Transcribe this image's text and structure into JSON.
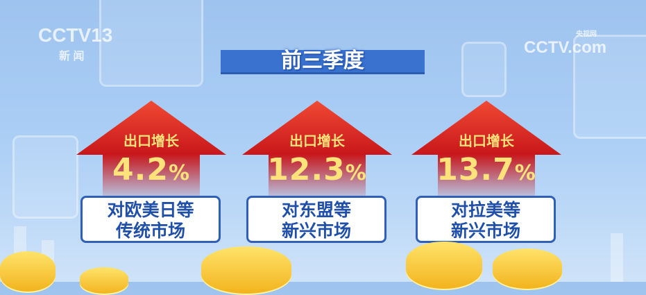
{
  "logos": {
    "channel": "CCTV",
    "channel_number": "13",
    "channel_sub": "新 闻",
    "site": "CCTV.com",
    "site_sub": "央视网"
  },
  "title": "前三季度",
  "cards": [
    {
      "label": "出口增长",
      "value": "4.2",
      "unit": "%",
      "line1": "对欧美日等",
      "line2": "传统市场"
    },
    {
      "label": "出口增长",
      "value": "12.3",
      "unit": "%",
      "line1": "对东盟等",
      "line2": "新兴市场"
    },
    {
      "label": "出口增长",
      "value": "13.7",
      "unit": "%",
      "line1": "对拉美等",
      "line2": "新兴市场"
    }
  ],
  "colors": {
    "arrow": "#d81e20",
    "value": "#ffe27a",
    "box_text": "#1f4fa8",
    "banner": "#3a72cf"
  }
}
